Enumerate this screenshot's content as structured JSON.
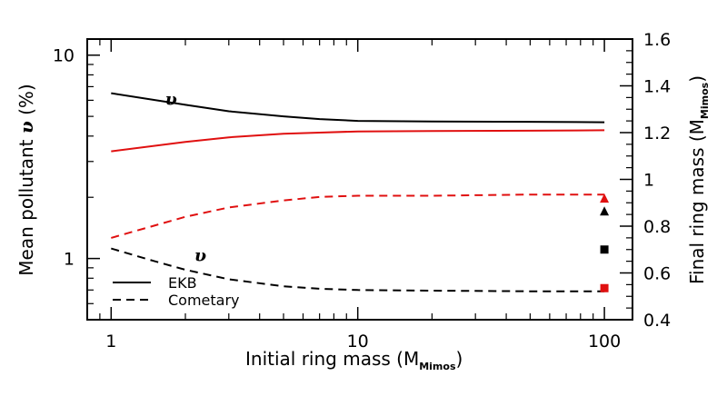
{
  "chart_data": {
    "type": "line",
    "xlabel": "Initial ring mass (M",
    "xlabel_sub": "Mimos",
    "xlabel_close": ")",
    "ylabel_left_prefix": "Mean pollutant ",
    "ylabel_left_symbol": "υ",
    "ylabel_left_suffix": " (%)",
    "ylabel_right": "Final ring mass (M",
    "ylabel_right_sub": "Mimos",
    "ylabel_right_close": ")",
    "x_scale": "log",
    "xlim": [
      0.8,
      130
    ],
    "x_ticks": [
      {
        "value": 1,
        "label": "1"
      },
      {
        "value": 10,
        "label": "10"
      },
      {
        "value": 100,
        "label": "100"
      }
    ],
    "y_left_scale": "log",
    "y_left_lim": [
      0.5,
      12
    ],
    "y_left_ticks": [
      {
        "value": 1,
        "label": "1"
      },
      {
        "value": 10,
        "label": "10"
      }
    ],
    "y_right_scale": "linear",
    "y_right_lim": [
      0.4,
      1.6
    ],
    "y_right_ticks": [
      {
        "value": 0.4,
        "label": "0.4"
      },
      {
        "value": 0.6,
        "label": "0.6"
      },
      {
        "value": 0.8,
        "label": "0.8"
      },
      {
        "value": 1.0,
        "label": "1"
      },
      {
        "value": 1.2,
        "label": "1.2"
      },
      {
        "value": 1.4,
        "label": "1.4"
      },
      {
        "value": 1.6,
        "label": "1.6"
      }
    ],
    "series": [
      {
        "name": "EKB pollutant",
        "axis": "left",
        "style": "solid",
        "color": "#000000",
        "x": [
          1,
          2,
          3,
          5,
          7,
          10,
          20,
          50,
          100
        ],
        "y": [
          6.5,
          5.7,
          5.3,
          5.0,
          4.85,
          4.75,
          4.72,
          4.7,
          4.68
        ]
      },
      {
        "name": "EKB final mass",
        "axis": "right",
        "style": "solid",
        "color": "#e01010",
        "x": [
          1,
          2,
          3,
          5,
          7,
          10,
          20,
          50,
          100
        ],
        "y": [
          1.12,
          1.16,
          1.18,
          1.195,
          1.2,
          1.205,
          1.207,
          1.208,
          1.21
        ]
      },
      {
        "name": "Cometary final mass",
        "axis": "right",
        "style": "dashed",
        "color": "#e01010",
        "x": [
          1,
          2,
          3,
          5,
          7,
          10,
          20,
          50,
          100
        ],
        "y": [
          0.75,
          0.84,
          0.88,
          0.91,
          0.925,
          0.93,
          0.93,
          0.935,
          0.935
        ]
      },
      {
        "name": "Cometary pollutant",
        "axis": "left",
        "style": "dashed",
        "color": "#000000",
        "x": [
          1,
          1.5,
          2,
          3,
          5,
          7,
          10,
          20,
          50,
          100
        ],
        "y": [
          1.12,
          0.97,
          0.88,
          0.79,
          0.73,
          0.71,
          0.7,
          0.695,
          0.69,
          0.69
        ]
      }
    ],
    "markers": [
      {
        "shape": "triangle",
        "color": "#e01010",
        "axis": "right",
        "x": 100,
        "y": 0.92
      },
      {
        "shape": "triangle",
        "color": "#000000",
        "axis": "right",
        "x": 100,
        "y": 0.865
      },
      {
        "shape": "square",
        "color": "#000000",
        "axis": "right",
        "x": 100,
        "y": 0.7
      },
      {
        "shape": "square",
        "color": "#e01010",
        "axis": "right",
        "x": 100,
        "y": 0.535
      }
    ],
    "annotations": [
      {
        "text": "υ",
        "axis": "left",
        "x": 1.75,
        "y": 5.7
      },
      {
        "text": "υ",
        "axis": "left",
        "x": 2.3,
        "y": 0.97
      }
    ],
    "legend": {
      "position": "bottom-left",
      "entries": [
        {
          "label": "EKB",
          "style": "solid"
        },
        {
          "label": "Cometary",
          "style": "dashed"
        }
      ]
    }
  }
}
